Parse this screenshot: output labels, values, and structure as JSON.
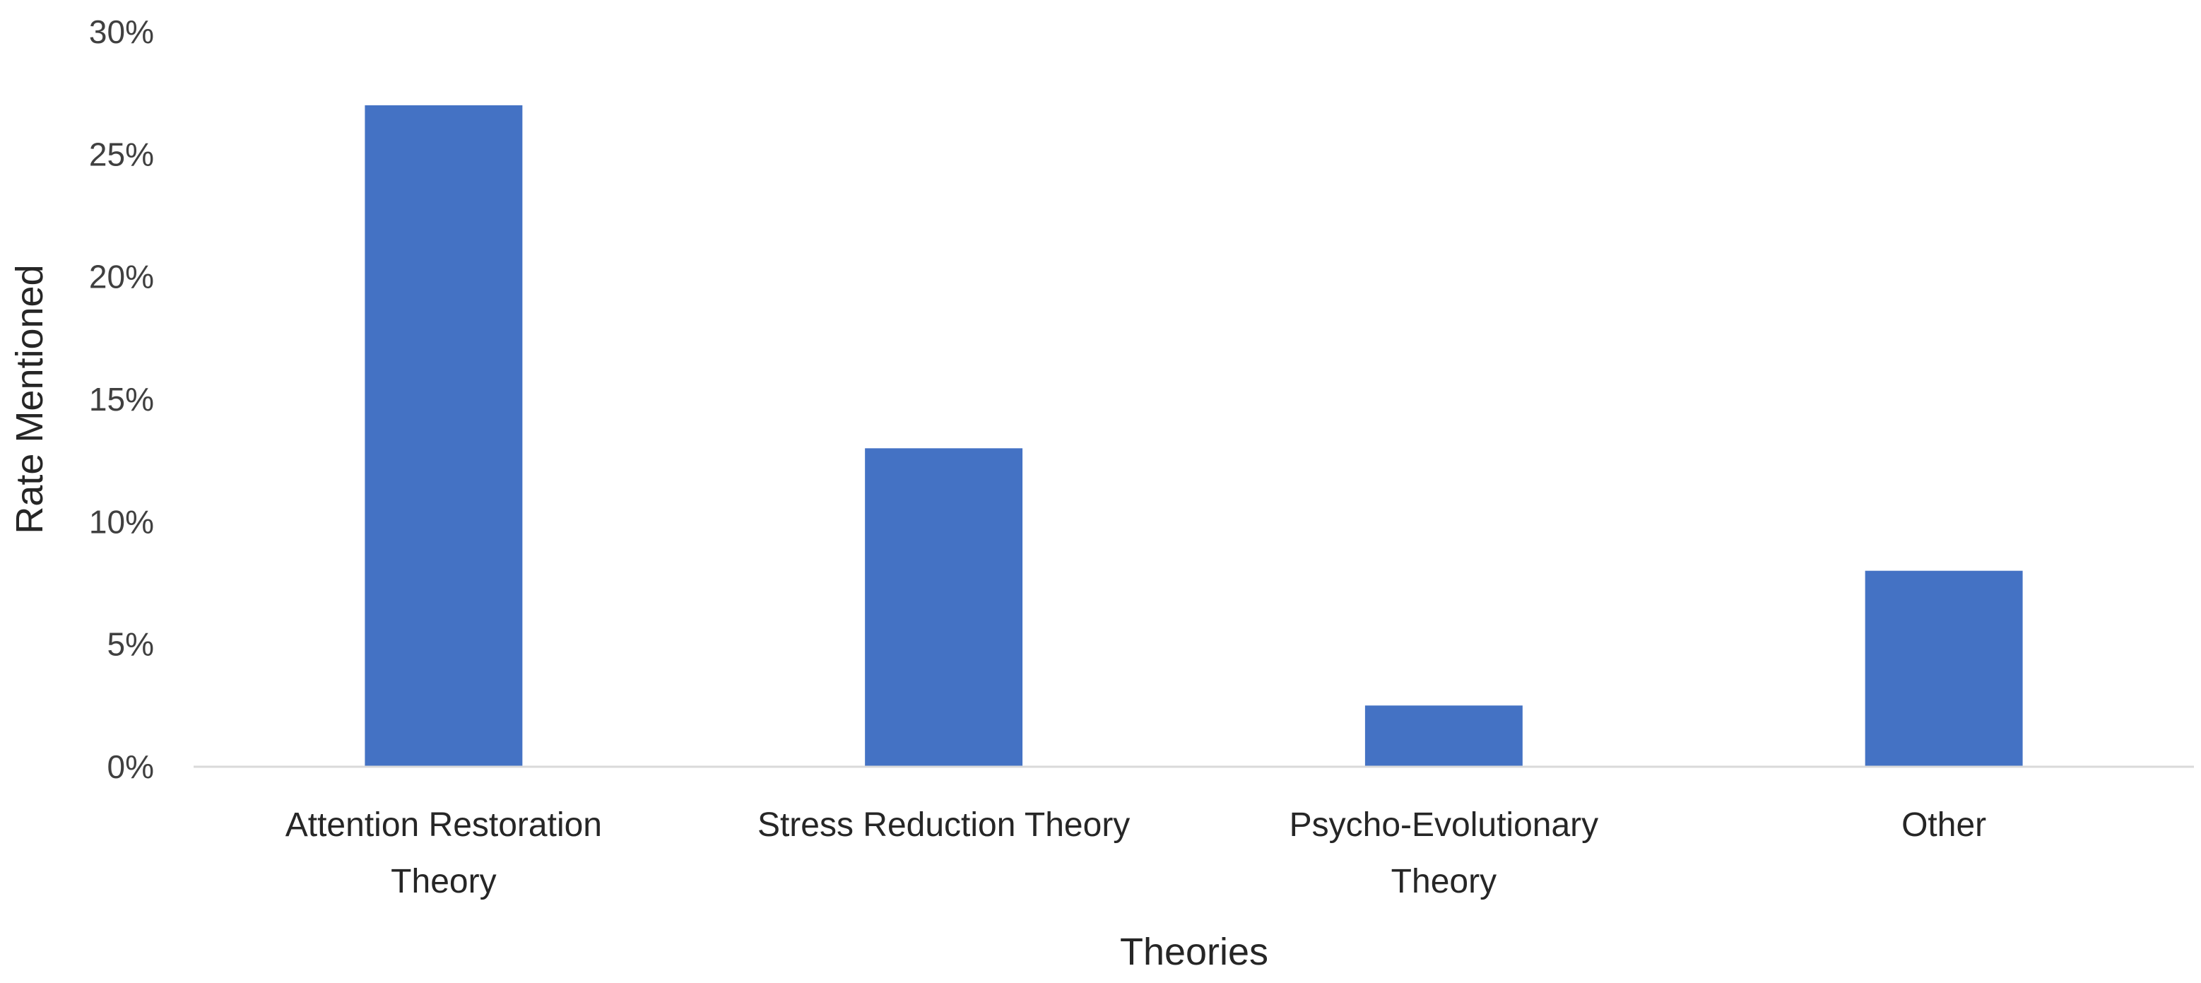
{
  "chart_data": {
    "type": "bar",
    "title": "",
    "xlabel": "Theories",
    "ylabel": "Rate Mentioned",
    "categories": [
      "Attention Restoration Theory",
      "Stress Reduction Theory",
      "Psycho-Evolutionary Theory",
      "Other"
    ],
    "category_label_lines": [
      [
        "Attention Restoration",
        "Theory"
      ],
      [
        "Stress Reduction Theory"
      ],
      [
        "Psycho-Evolutionary",
        "Theory"
      ],
      [
        "Other"
      ]
    ],
    "values": [
      0.27,
      0.13,
      0.025,
      0.08
    ],
    "ylim": [
      0,
      0.3
    ],
    "yticks": [
      0,
      0.05,
      0.1,
      0.15,
      0.2,
      0.25,
      0.3
    ],
    "ytick_labels": [
      "0%",
      "5%",
      "10%",
      "15%",
      "20%",
      "25%",
      "30%"
    ],
    "grid": false,
    "legend": "none",
    "colors": {
      "bar": "#4472C4",
      "axis": "#D9D9D9"
    }
  }
}
